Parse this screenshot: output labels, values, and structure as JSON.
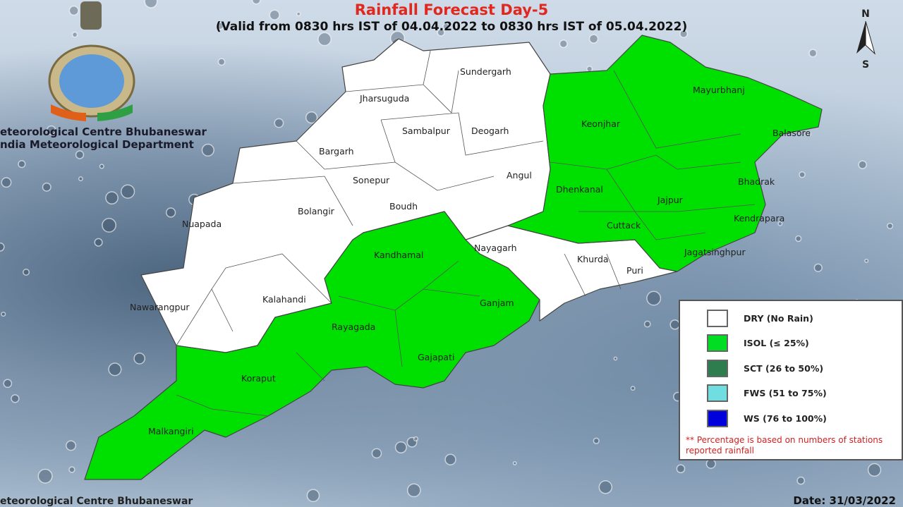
{
  "header": {
    "title": "Rainfall Forecast Day-5",
    "subtitle": "(Valid from 0830 hrs IST of 04.04.2022 to 0830 hrs IST of 05.04.2022)"
  },
  "organization": {
    "line1": "eteorological Centre Bhubaneswar",
    "line2": "ndia Meteorological Department",
    "logo": "imd-emblem"
  },
  "compass": {
    "north": "N",
    "south": "S"
  },
  "categories_colors": {
    "DRY": "#ffffff",
    "ISOL": "#00e000",
    "SCT": "#2e7d4f",
    "FWS": "#70dde0",
    "WS": "#0000dd"
  },
  "districts": [
    {
      "name": "Sundergarh",
      "category": "DRY"
    },
    {
      "name": "Jharsuguda",
      "category": "DRY"
    },
    {
      "name": "Sambalpur",
      "category": "DRY"
    },
    {
      "name": "Deogarh",
      "category": "DRY"
    },
    {
      "name": "Bargarh",
      "category": "DRY"
    },
    {
      "name": "Sonepur",
      "category": "DRY"
    },
    {
      "name": "Angul",
      "category": "DRY"
    },
    {
      "name": "Bolangir",
      "category": "DRY"
    },
    {
      "name": "Boudh",
      "category": "DRY"
    },
    {
      "name": "Nuapada",
      "category": "DRY"
    },
    {
      "name": "Kalahandi",
      "category": "DRY"
    },
    {
      "name": "Nawarangpur",
      "category": "DRY"
    },
    {
      "name": "Nayagarh",
      "category": "DRY"
    },
    {
      "name": "Khurda",
      "category": "DRY"
    },
    {
      "name": "Puri",
      "category": "DRY"
    },
    {
      "name": "Mayurbhanj",
      "category": "ISOL"
    },
    {
      "name": "Keonjhar",
      "category": "ISOL"
    },
    {
      "name": "Balasore",
      "category": "ISOL"
    },
    {
      "name": "Bhadrak",
      "category": "ISOL"
    },
    {
      "name": "Dhenkanal",
      "category": "ISOL"
    },
    {
      "name": "Jajpur",
      "category": "ISOL"
    },
    {
      "name": "Kendrapara",
      "category": "ISOL"
    },
    {
      "name": "Cuttack",
      "category": "ISOL"
    },
    {
      "name": "Jagatsinghpur",
      "category": "ISOL"
    },
    {
      "name": "Kandhamal",
      "category": "ISOL"
    },
    {
      "name": "Ganjam",
      "category": "ISOL"
    },
    {
      "name": "Rayagada",
      "category": "ISOL"
    },
    {
      "name": "Gajapati",
      "category": "ISOL"
    },
    {
      "name": "Koraput",
      "category": "ISOL"
    },
    {
      "name": "Malkangiri",
      "category": "ISOL"
    }
  ],
  "legend": {
    "items": [
      {
        "label": "DRY (No Rain)",
        "color": "#ffffff"
      },
      {
        "label": "ISOL (≤ 25%)",
        "color": "#00e000"
      },
      {
        "label": "SCT (26 to 50%)",
        "color": "#2e7d4f"
      },
      {
        "label": "FWS (51 to 75%)",
        "color": "#70dde0"
      },
      {
        "label": "WS (76 to 100%)",
        "color": "#0000dd"
      }
    ],
    "note": "** Percentage is based on numbers of stations reported rainfall"
  },
  "footer": {
    "org": "eteorological Centre Bhubaneswar",
    "date": "Date: 31/03/2022"
  }
}
